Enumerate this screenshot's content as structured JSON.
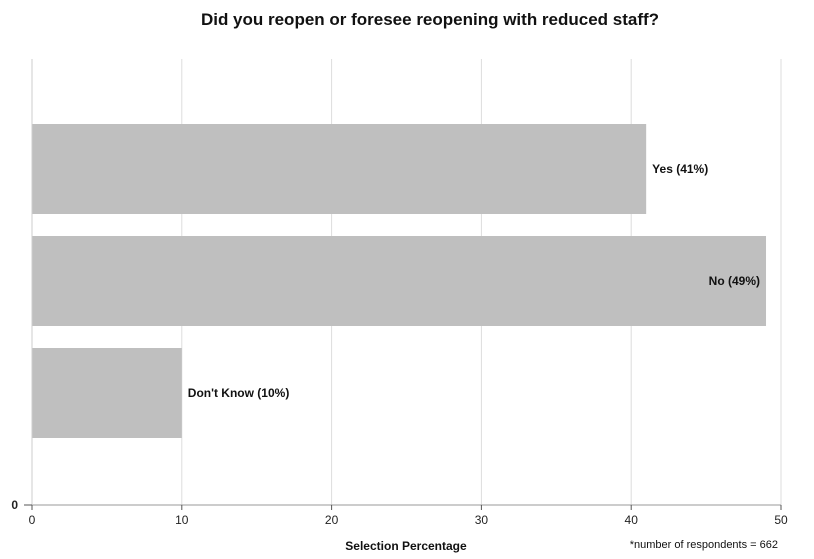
{
  "chart_data": {
    "type": "bar",
    "orientation": "horizontal",
    "title": "Did you reopen or foresee reopening with reduced staff?",
    "xlabel": "Selection Percentage",
    "ylabel": "",
    "categories": [
      "Yes",
      "No",
      "Don't Know"
    ],
    "values": [
      41,
      49,
      10
    ],
    "bar_labels": [
      "Yes (41%)",
      "No (49%)",
      "Don't Know (10%)"
    ],
    "xlim": [
      0,
      50
    ],
    "x_ticks": [
      "0",
      "10",
      "20",
      "30",
      "40",
      "50"
    ],
    "y_tick": "0",
    "grid": "vertical",
    "bar_color": "#bfbfbf",
    "grid_color": "#dddddd",
    "note": "*number of respondents = 662"
  }
}
